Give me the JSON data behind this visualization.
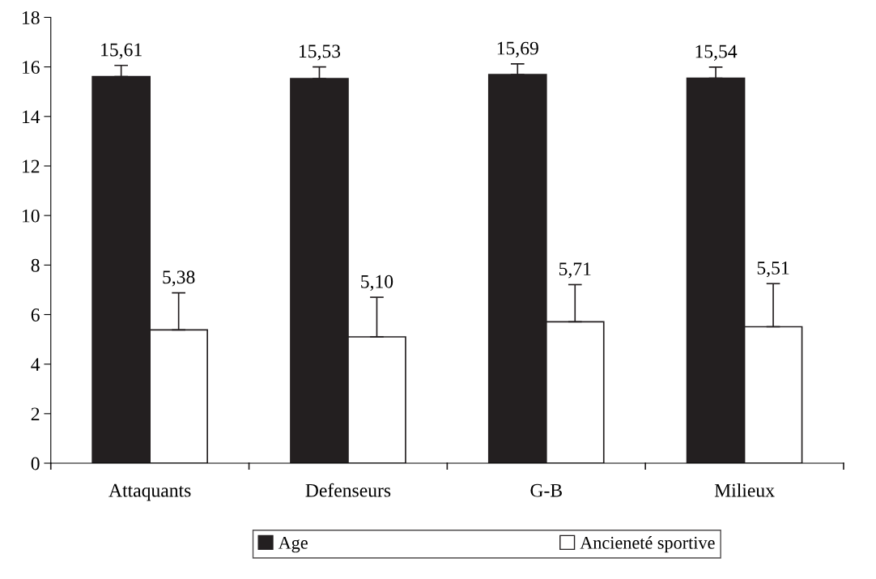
{
  "chart_data": {
    "type": "bar",
    "categories": [
      "Attaquants",
      "Defenseurs",
      "G-B",
      "Milieux"
    ],
    "series": [
      {
        "name": "Age",
        "color": "#231f20",
        "values": [
          15.61,
          15.53,
          15.69,
          15.54
        ],
        "errors": [
          0.45,
          0.47,
          0.43,
          0.45
        ],
        "value_labels": [
          "15,61",
          "15,53",
          "15,69",
          "15,54"
        ]
      },
      {
        "name": "Ancieneté sportive",
        "color": "#ffffff",
        "values": [
          5.38,
          5.1,
          5.71,
          5.51
        ],
        "errors": [
          1.5,
          1.6,
          1.5,
          1.74
        ],
        "value_labels": [
          "5,38",
          "5,10",
          "5,71",
          "5,51"
        ]
      }
    ],
    "ylim": [
      0,
      18
    ],
    "yticks": [
      0,
      2,
      4,
      6,
      8,
      10,
      12,
      14,
      16,
      18
    ],
    "grid": false,
    "legend": "bottom"
  }
}
